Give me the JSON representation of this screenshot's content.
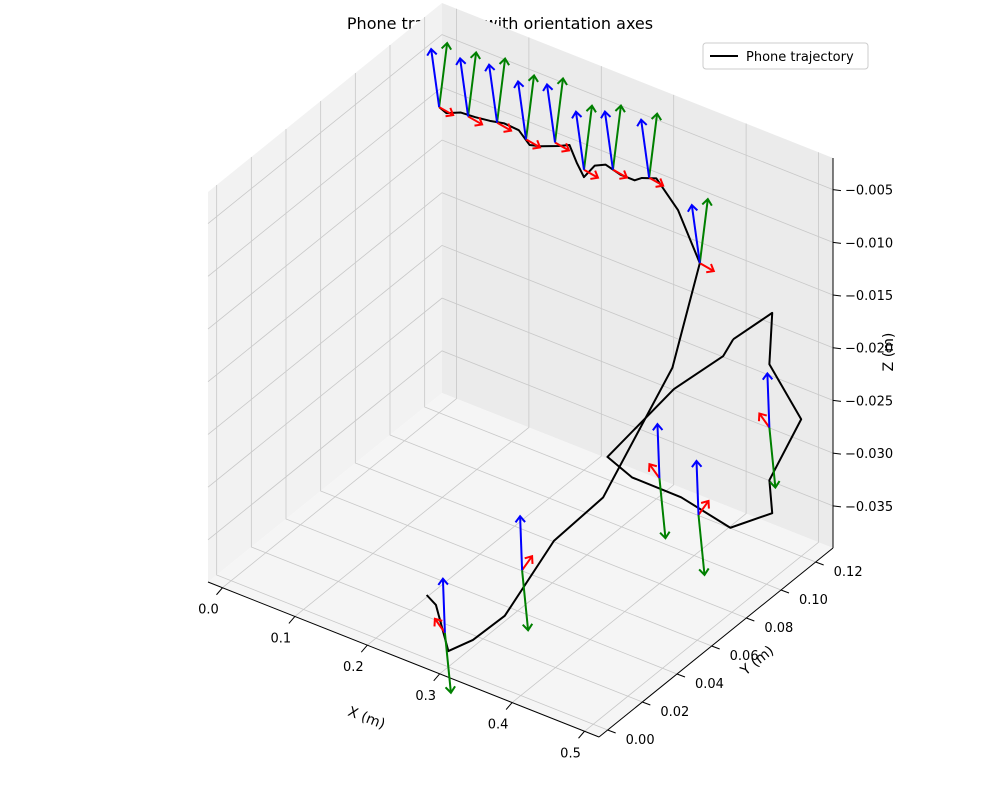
{
  "chart_data": {
    "type": "line3d",
    "title": "Phone trajectory with orientation axes",
    "xlabel": "X (m)",
    "ylabel": "Y (m)",
    "zlabel": "Z (m)",
    "legend": {
      "label": "Phone trajectory",
      "placement": "top-right",
      "color": "#000000"
    },
    "grid": true,
    "xticks": [
      "0.0",
      "0.1",
      "0.2",
      "0.3",
      "0.4",
      "0.5"
    ],
    "yticks": [
      "0.00",
      "0.02",
      "0.04",
      "0.06",
      "0.08",
      "0.10",
      "0.12"
    ],
    "zticks": [
      "−0.035",
      "−0.030",
      "−0.025",
      "−0.020",
      "−0.015",
      "−0.010",
      "−0.005"
    ],
    "xlim": [
      -0.02,
      0.52
    ],
    "ylim": [
      -0.005,
      0.13
    ],
    "zlim": [
      -0.039,
      -0.002
    ],
    "colors": {
      "axis_x": "#ff0000",
      "axis_y": "#008000",
      "axis_z": "#0000ff",
      "trajectory": "#000000",
      "pane": "#f2f2f2",
      "grid": "#b0b0b0"
    },
    "trajectory": [
      [
        0.0,
        0.12,
        -0.01
      ],
      [
        0.01,
        0.12,
        -0.0103
      ],
      [
        0.03,
        0.12,
        -0.0097
      ],
      [
        0.05,
        0.12,
        -0.0096
      ],
      [
        0.07,
        0.12,
        -0.0094
      ],
      [
        0.09,
        0.12,
        -0.0091
      ],
      [
        0.11,
        0.12,
        -0.0092
      ],
      [
        0.125,
        0.12,
        -0.0102
      ],
      [
        0.14,
        0.12,
        -0.0099
      ],
      [
        0.165,
        0.12,
        -0.0092
      ],
      [
        0.18,
        0.12,
        -0.0087
      ],
      [
        0.19,
        0.12,
        -0.0101
      ],
      [
        0.2,
        0.12,
        -0.0112
      ],
      [
        0.215,
        0.12,
        -0.0097
      ],
      [
        0.23,
        0.12,
        -0.0092
      ],
      [
        0.25,
        0.12,
        -0.0096
      ],
      [
        0.27,
        0.12,
        -0.0096
      ],
      [
        0.28,
        0.12,
        -0.0091
      ],
      [
        0.3,
        0.12,
        -0.0086
      ],
      [
        0.33,
        0.12,
        -0.0108
      ],
      [
        0.36,
        0.12,
        -0.015
      ],
      [
        0.37,
        0.1,
        -0.022
      ],
      [
        0.37,
        0.06,
        -0.029
      ],
      [
        0.35,
        0.04,
        -0.031
      ],
      [
        0.33,
        0.02,
        -0.036
      ],
      [
        0.31,
        0.01,
        -0.0375
      ],
      [
        0.3,
        0.0,
        -0.0375
      ],
      [
        0.29,
        -0.003,
        -0.033
      ],
      [
        0.27,
        0.0,
        -0.033
      ]
    ],
    "loop": [
      [
        0.43,
        0.11,
        -0.019
      ],
      [
        0.46,
        0.12,
        -0.017
      ],
      [
        0.48,
        0.11,
        -0.02
      ],
      [
        0.5,
        0.12,
        -0.026
      ],
      [
        0.48,
        0.11,
        -0.031
      ],
      [
        0.46,
        0.12,
        -0.036
      ],
      [
        0.45,
        0.1,
        -0.035
      ],
      [
        0.43,
        0.08,
        -0.03
      ],
      [
        0.41,
        0.06,
        -0.026
      ],
      [
        0.4,
        0.05,
        -0.023
      ],
      [
        0.42,
        0.08,
        -0.02
      ],
      [
        0.44,
        0.1,
        -0.019
      ],
      [
        0.43,
        0.11,
        -0.019
      ]
    ],
    "frames": [
      [
        0.0,
        0.12,
        -0.01
      ],
      [
        0.04,
        0.12,
        -0.0098
      ],
      [
        0.08,
        0.12,
        -0.0093
      ],
      [
        0.12,
        0.12,
        -0.0098
      ],
      [
        0.16,
        0.12,
        -0.009
      ],
      [
        0.2,
        0.12,
        -0.0105
      ],
      [
        0.24,
        0.12,
        -0.0094
      ],
      [
        0.29,
        0.12,
        -0.0088
      ],
      [
        0.36,
        0.12,
        -0.015
      ],
      [
        0.4,
        0.08,
        -0.029
      ],
      [
        0.33,
        0.03,
        -0.033
      ],
      [
        0.3,
        -0.002,
        -0.0355
      ],
      [
        0.43,
        0.09,
        -0.033
      ],
      [
        0.48,
        0.11,
        -0.026
      ]
    ]
  }
}
